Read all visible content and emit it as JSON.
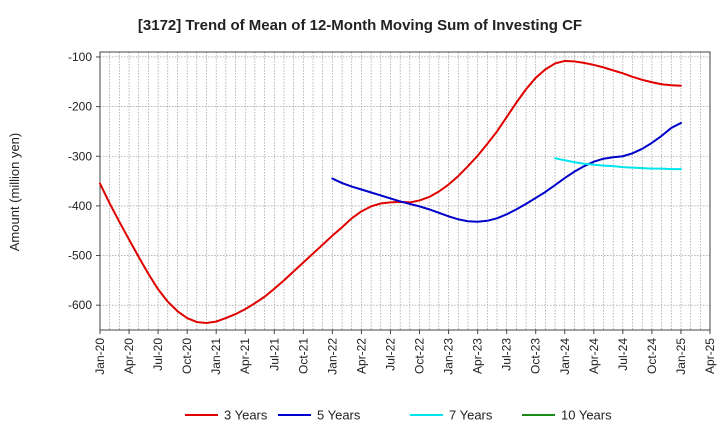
{
  "chart_data": {
    "type": "line",
    "title": "[3172]  Trend of Mean of 12-Month Moving Sum of Investing CF",
    "xlabel": "",
    "ylabel": "Amount (million yen)",
    "ylim": [
      -650,
      -90
    ],
    "yticks": [
      -100,
      -200,
      -300,
      -400,
      -500,
      -600
    ],
    "ytick_labels": [
      "-100",
      "-200",
      "-300",
      "-400",
      "-500",
      "-600"
    ],
    "xlim": [
      0,
      63
    ],
    "xtick_labels": [
      "Jan-20",
      "Apr-20",
      "Jul-20",
      "Oct-20",
      "Jan-21",
      "Apr-21",
      "Jul-21",
      "Oct-21",
      "Jan-22",
      "Apr-22",
      "Jul-22",
      "Oct-22",
      "Jan-23",
      "Apr-23",
      "Jul-23",
      "Oct-23",
      "Jan-24",
      "Apr-24",
      "Jul-24",
      "Oct-24",
      "Jan-25",
      "Apr-25"
    ],
    "x_unit": "months since Jan-20",
    "grid": true,
    "legend_position": "bottom",
    "series": [
      {
        "name": "3 Years",
        "color": "#e00000",
        "x": [
          0,
          1,
          2,
          3,
          4,
          5,
          6,
          7,
          8,
          9,
          10,
          11,
          12,
          13,
          14,
          15,
          16,
          17,
          18,
          19,
          20,
          21,
          22,
          23,
          24,
          25,
          26,
          27,
          28,
          29,
          30,
          31,
          32,
          33,
          34,
          35,
          36,
          37,
          38,
          39,
          40,
          41,
          42,
          43,
          44,
          45,
          46,
          47,
          48,
          49,
          50,
          51,
          52,
          53,
          54,
          55,
          56,
          57,
          58,
          59,
          60
        ],
        "values": [
          -355,
          -395,
          -432,
          -468,
          -503,
          -537,
          -568,
          -593,
          -612,
          -626,
          -634,
          -636,
          -633,
          -626,
          -618,
          -608,
          -596,
          -583,
          -567,
          -550,
          -532,
          -514,
          -496,
          -478,
          -460,
          -443,
          -425,
          -411,
          -401,
          -395,
          -393,
          -392,
          -393,
          -389,
          -382,
          -371,
          -357,
          -340,
          -320,
          -299,
          -275,
          -250,
          -221,
          -192,
          -165,
          -142,
          -125,
          -113,
          -108,
          -109,
          -112,
          -116,
          -121,
          -127,
          -133,
          -140,
          -146,
          -151,
          -155,
          -157,
          -158
        ]
      },
      {
        "name": "5 Years",
        "color": "#0000cc",
        "x": [
          24,
          25,
          26,
          27,
          28,
          29,
          30,
          31,
          32,
          33,
          34,
          35,
          36,
          37,
          38,
          39,
          40,
          41,
          42,
          43,
          44,
          45,
          46,
          47,
          48,
          49,
          50,
          51,
          52,
          53,
          54,
          55,
          56,
          57,
          58,
          59,
          60
        ],
        "values": [
          -345,
          -354,
          -361,
          -367,
          -373,
          -379,
          -385,
          -391,
          -396,
          -401,
          -407,
          -414,
          -421,
          -427,
          -431,
          -432,
          -430,
          -425,
          -417,
          -407,
          -396,
          -384,
          -372,
          -358,
          -344,
          -331,
          -320,
          -311,
          -305,
          -302,
          -300,
          -294,
          -285,
          -273,
          -259,
          -243,
          -233
        ]
      },
      {
        "name": "7 Years",
        "color": "#00e5ee",
        "x": [
          47,
          48,
          49,
          50,
          51,
          52,
          53,
          54,
          55,
          56,
          57,
          58,
          59,
          60
        ],
        "values": [
          -304,
          -308,
          -312,
          -315,
          -317,
          -319,
          -320,
          -322,
          -323,
          -324,
          -325,
          -325,
          -326,
          -326
        ]
      },
      {
        "name": "10 Years",
        "color": "#1a8a1a",
        "x": [],
        "values": []
      }
    ]
  }
}
